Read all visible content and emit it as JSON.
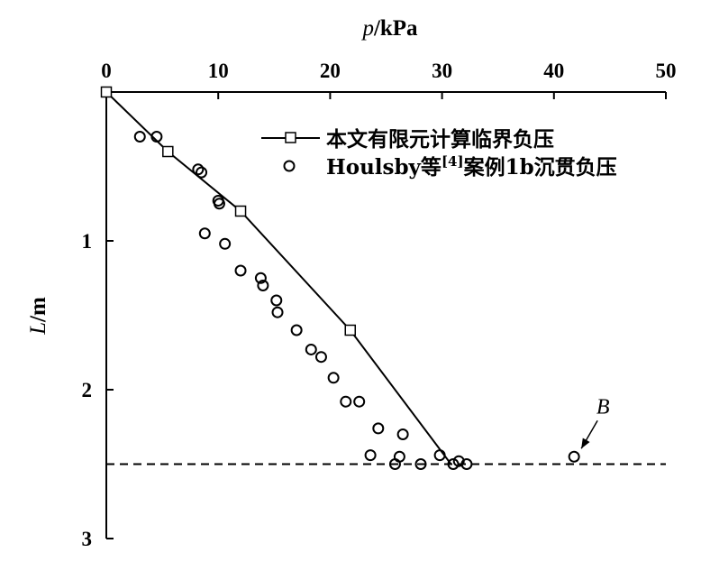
{
  "chart_data": {
    "type": "scatter",
    "x_axis": {
      "label_var": "p",
      "label_unit": "/kPa",
      "position": "top",
      "range": [
        0,
        50
      ],
      "ticks": [
        0,
        10,
        20,
        30,
        40,
        50
      ]
    },
    "y_axis": {
      "label_var": "L",
      "label_unit": "/m",
      "inverted": true,
      "range": [
        0,
        3
      ],
      "ticks": [
        1,
        2,
        3
      ]
    },
    "grid": false,
    "legend_position": "top-right",
    "series": [
      {
        "name": "本文有限元计算临界负压",
        "style": "line-square",
        "x": [
          0,
          5.5,
          12,
          21.8,
          30.8
        ],
        "y": [
          0,
          0.4,
          0.8,
          1.6,
          2.5
        ]
      },
      {
        "name_prefix": "Houlsby等",
        "name_ref": "[4]",
        "name_suffix": "案例1b沉贯负压",
        "style": "circle",
        "x": [
          3.0,
          4.5,
          8.2,
          8.5,
          10.0,
          10.1,
          8.8,
          10.6,
          12.0,
          13.8,
          14.0,
          15.2,
          15.3,
          17.0,
          18.3,
          19.2,
          20.3,
          21.4,
          22.6,
          24.3,
          26.5,
          23.6,
          26.2,
          25.8,
          28.1,
          29.8,
          31.0,
          31.5,
          32.2
        ],
        "y": [
          0.3,
          0.3,
          0.52,
          0.54,
          0.73,
          0.75,
          0.95,
          1.02,
          1.2,
          1.25,
          1.3,
          1.4,
          1.48,
          1.6,
          1.73,
          1.78,
          1.92,
          2.08,
          2.08,
          2.26,
          2.3,
          2.44,
          2.45,
          2.5,
          2.5,
          2.44,
          2.5,
          2.48,
          2.5
        ]
      }
    ],
    "reference_line": {
      "y": 2.5,
      "style": "dashed"
    },
    "annotations": [
      {
        "text": "B",
        "x": 41.8,
        "y": 2.45
      }
    ]
  }
}
